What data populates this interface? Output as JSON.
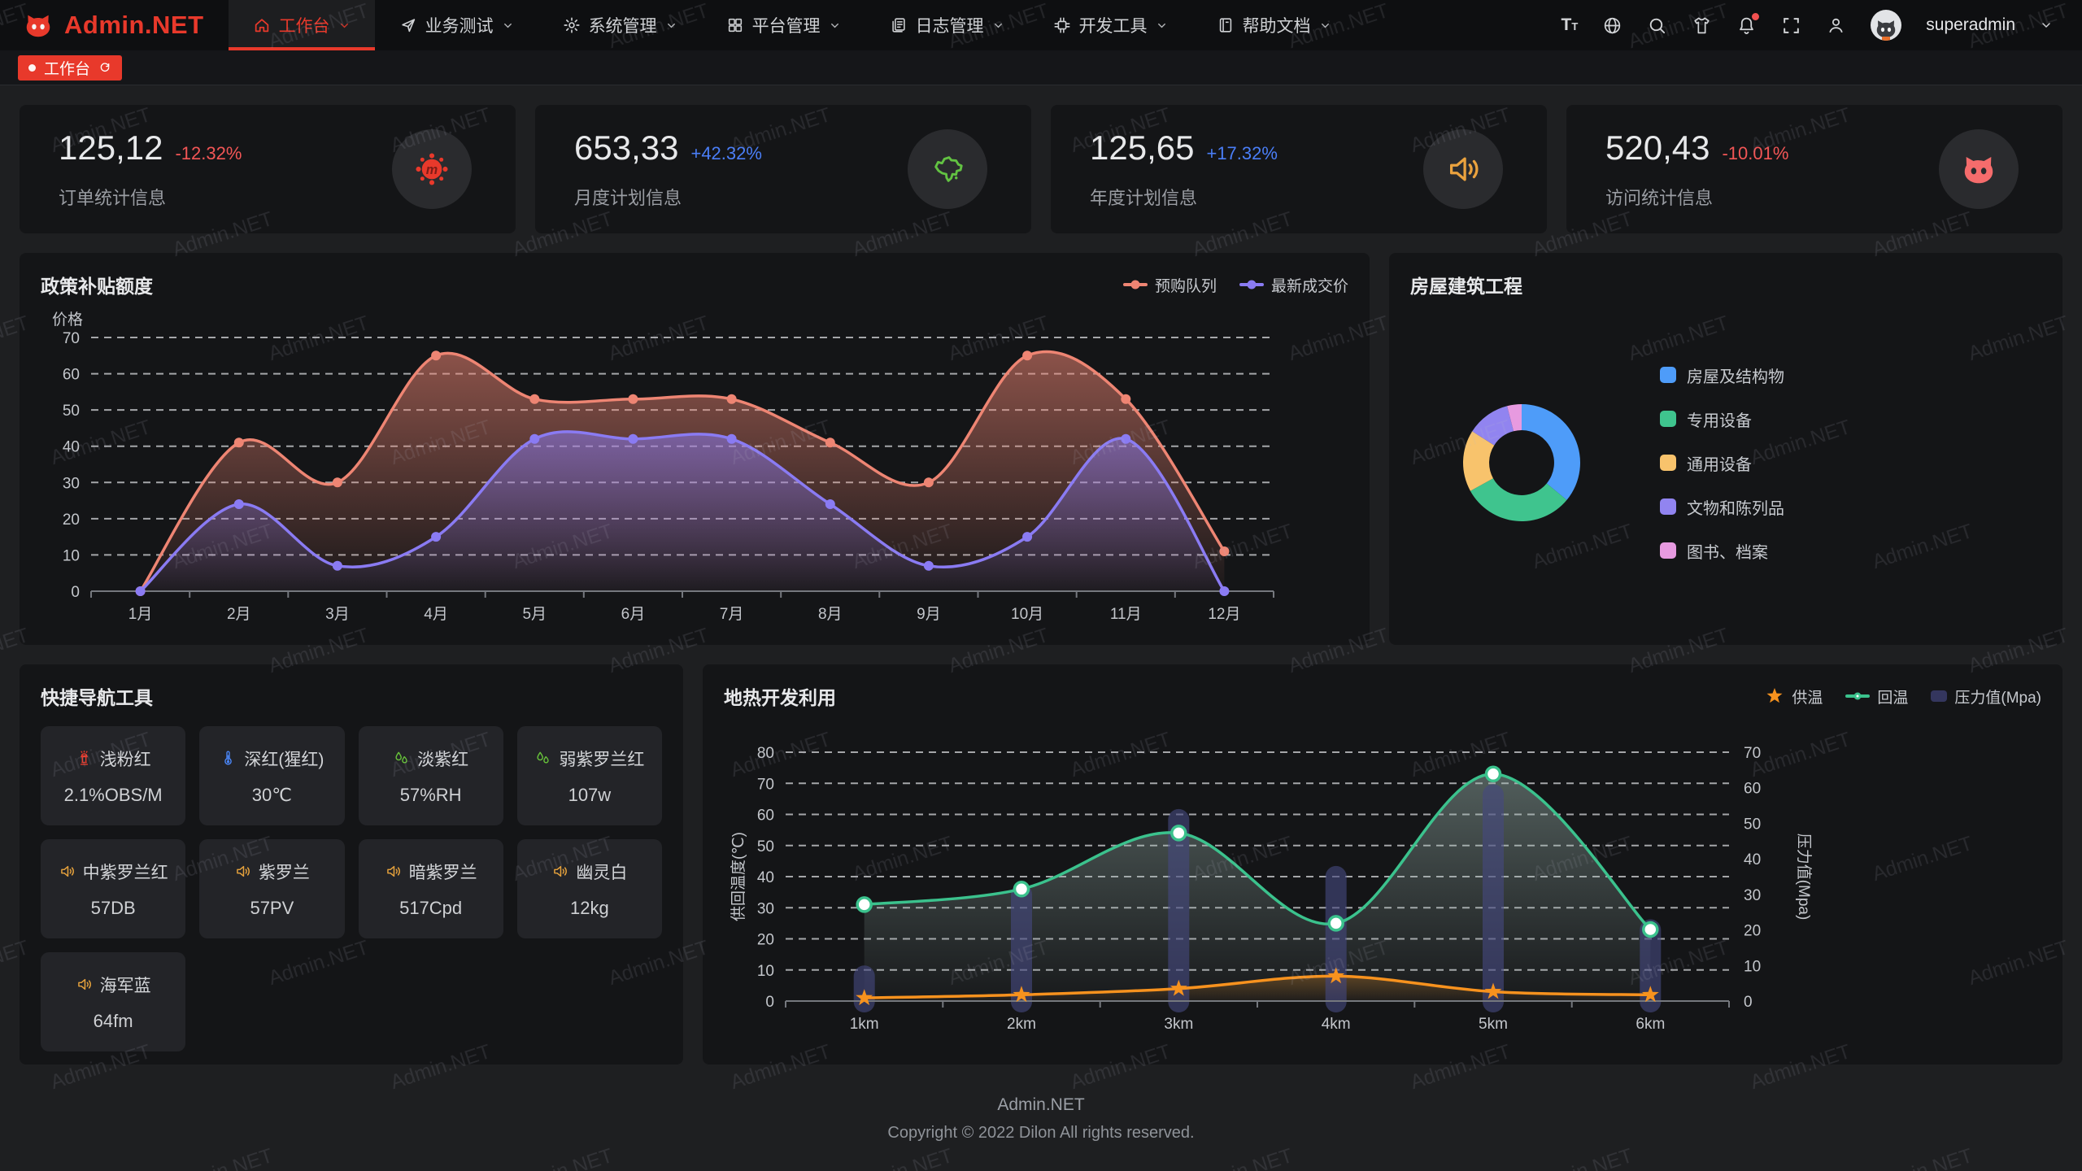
{
  "watermark": {
    "text": "Admin.NET"
  },
  "navbar": {
    "logo_text": "Admin.NET",
    "menu": [
      {
        "id": "workbench",
        "label": "工作台",
        "icon": "home-icon",
        "active": true
      },
      {
        "id": "business-test",
        "label": "业务测试",
        "icon": "send-icon",
        "active": false
      },
      {
        "id": "system-manage",
        "label": "系统管理",
        "icon": "gear-icon",
        "active": false
      },
      {
        "id": "platform-manage",
        "label": "平台管理",
        "icon": "grid-icon",
        "active": false
      },
      {
        "id": "log-manage",
        "label": "日志管理",
        "icon": "log-icon",
        "active": false
      },
      {
        "id": "dev-tools",
        "label": "开发工具",
        "icon": "cpu-icon",
        "active": false
      },
      {
        "id": "help-docs",
        "label": "帮助文档",
        "icon": "book-icon",
        "active": false
      }
    ],
    "username": "superadmin",
    "has_notification": true
  },
  "tabbar": {
    "active_tab": "工作台"
  },
  "stat_cards": [
    {
      "value": "125,12",
      "delta": "-12.32%",
      "trend": "down",
      "label": "订单统计信息",
      "icon": "virus-icon",
      "icon_color": "#e8392b"
    },
    {
      "value": "653,33",
      "delta": "+42.32%",
      "trend": "up",
      "label": "月度计划信息",
      "icon": "china-map-icon",
      "icon_color": "#62c242"
    },
    {
      "value": "125,65",
      "delta": "+17.32%",
      "trend": "up",
      "label": "年度计划信息",
      "icon": "speaker-icon",
      "icon_color": "#eaa23e"
    },
    {
      "value": "520,43",
      "delta": "-10.01%",
      "trend": "down",
      "label": "访问统计信息",
      "icon": "cat-icon",
      "icon_color": "#f56c6c"
    }
  ],
  "chart_data": [
    {
      "id": "subsidy",
      "type": "line",
      "title": "政策补贴额度",
      "ylabel": "价格",
      "ylim": [
        0,
        70
      ],
      "ystep": 10,
      "grid": "dashed",
      "legend_position": "top-right",
      "categories": [
        "1月",
        "2月",
        "3月",
        "4月",
        "5月",
        "6月",
        "7月",
        "8月",
        "9月",
        "10月",
        "11月",
        "12月"
      ],
      "series": [
        {
          "name": "预购队列",
          "color": "#ee8573",
          "values": [
            0,
            41,
            30,
            65,
            53,
            53,
            53,
            41,
            30,
            65,
            53,
            11
          ]
        },
        {
          "name": "最新成交价",
          "color": "#8a7bf3",
          "values": [
            0,
            24,
            7,
            15,
            42,
            42,
            42,
            24,
            7,
            15,
            42,
            0
          ]
        }
      ]
    },
    {
      "id": "building",
      "type": "pie",
      "title": "房屋建筑工程",
      "legend_position": "right",
      "items": [
        {
          "name": "房屋及结构物",
          "value": 36,
          "color": "#4e9cf9"
        },
        {
          "name": "专用设备",
          "value": 31,
          "color": "#3fc48e"
        },
        {
          "name": "通用设备",
          "value": 17,
          "color": "#f8c36c"
        },
        {
          "name": "文物和陈列品",
          "value": 12,
          "color": "#9184f0"
        },
        {
          "name": "图书、档案",
          "value": 4,
          "color": "#e79ae0"
        }
      ]
    },
    {
      "id": "geothermal",
      "type": "line+bar",
      "title": "地热开发利用",
      "legend_position": "top-right",
      "categories": [
        "1km",
        "2km",
        "3km",
        "4km",
        "5km",
        "6km"
      ],
      "left_axis": {
        "label": "供回温度(℃)",
        "min": 0,
        "max": 80,
        "step": 10
      },
      "right_axis": {
        "label": "压力值(Mpa)",
        "min": 0,
        "max": 70,
        "step": 10
      },
      "series": [
        {
          "name": "供温",
          "type": "line",
          "marker": "star",
          "color": "#f7921e",
          "values": [
            1,
            2,
            4,
            8,
            3,
            2
          ]
        },
        {
          "name": "回温",
          "type": "line",
          "marker": "ring",
          "color": "#3bc28d",
          "values": [
            31,
            36,
            54,
            25,
            73,
            23
          ]
        },
        {
          "name": "压力值(Mpa)",
          "type": "bar",
          "color": "#45487f",
          "values": [
            10,
            33,
            54,
            38,
            61,
            23
          ]
        }
      ]
    }
  ],
  "quick_nav": {
    "title": "快捷导航工具",
    "tiles": [
      {
        "name": "浅粉红",
        "value": "2.1%OBS/M",
        "icon": "hydrant-icon",
        "icon_color": "#e8392b"
      },
      {
        "name": "深红(猩红)",
        "value": "30℃",
        "icon": "thermometer-icon",
        "icon_color": "#4a86f7"
      },
      {
        "name": "淡紫红",
        "value": "57%RH",
        "icon": "humidity-icon",
        "icon_color": "#67c23a"
      },
      {
        "name": "弱紫罗兰红",
        "value": "107w",
        "icon": "humidity-icon",
        "icon_color": "#67c23a"
      },
      {
        "name": "中紫罗兰红",
        "value": "57DB",
        "icon": "speaker-icon",
        "icon_color": "#e6a23c"
      },
      {
        "name": "紫罗兰",
        "value": "57PV",
        "icon": "speaker-icon",
        "icon_color": "#e6a23c"
      },
      {
        "name": "暗紫罗兰",
        "value": "517Cpd",
        "icon": "speaker-icon",
        "icon_color": "#e6a23c"
      },
      {
        "name": "幽灵白",
        "value": "12kg",
        "icon": "speaker-icon",
        "icon_color": "#e6a23c"
      },
      {
        "name": "海军蓝",
        "value": "64fm",
        "icon": "speaker-icon",
        "icon_color": "#e6a23c"
      }
    ]
  },
  "footer": {
    "app": "Admin.NET",
    "copyright": "Copyright © 2022 Dilon All rights reserved."
  },
  "colors": {
    "accent": "#e8392b",
    "up": "#4a7ef7",
    "down": "#f35656",
    "page_bg": "#1e1f21",
    "card_bg": "#141517"
  }
}
